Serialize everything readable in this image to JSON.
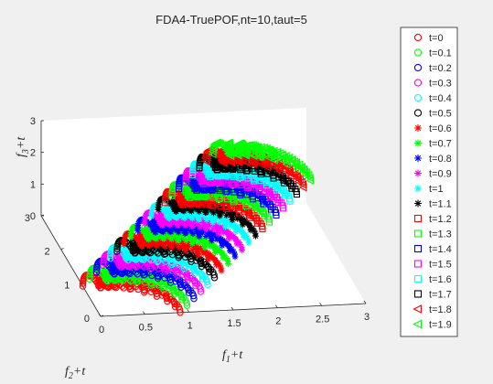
{
  "chart_data": {
    "type": "scatter",
    "subtype": "3d",
    "title": "FDA4-TruePOF,nt=10,taut=5",
    "xlabel": {
      "main": "f",
      "sub": "1",
      "suffix": "+t"
    },
    "ylabel": {
      "main": "f",
      "sub": "2",
      "suffix": "+t"
    },
    "zlabel": {
      "main": "f",
      "sub": "3",
      "suffix": "+t"
    },
    "xlim": [
      0,
      3
    ],
    "ylim": [
      0,
      3
    ],
    "zlim": [
      0,
      3
    ],
    "x_ticks": [
      "0",
      "0.5",
      "1",
      "1.5",
      "2",
      "2.5",
      "3"
    ],
    "y_ticks": [
      "0",
      "1",
      "2",
      "3"
    ],
    "z_ticks": [
      "0",
      "1",
      "2",
      "3"
    ],
    "legend_position": "right",
    "series": [
      {
        "name": "t=0",
        "t": 0.0,
        "color": "#ff0000",
        "marker": "circle"
      },
      {
        "name": "t=0.1",
        "t": 0.1,
        "color": "#00ff00",
        "marker": "circle"
      },
      {
        "name": "t=0.2",
        "t": 0.2,
        "color": "#0000ff",
        "marker": "circle"
      },
      {
        "name": "t=0.3",
        "t": 0.3,
        "color": "#ff00ff",
        "marker": "circle"
      },
      {
        "name": "t=0.4",
        "t": 0.4,
        "color": "#00ffff",
        "marker": "circle"
      },
      {
        "name": "t=0.5",
        "t": 0.5,
        "color": "#000000",
        "marker": "circle"
      },
      {
        "name": "t=0.6",
        "t": 0.6,
        "color": "#ff0000",
        "marker": "asterisk"
      },
      {
        "name": "t=0.7",
        "t": 0.7,
        "color": "#00ff00",
        "marker": "asterisk"
      },
      {
        "name": "t=0.8",
        "t": 0.8,
        "color": "#0000ff",
        "marker": "asterisk"
      },
      {
        "name": "t=0.9",
        "t": 0.9,
        "color": "#ff00ff",
        "marker": "asterisk"
      },
      {
        "name": "t=1",
        "t": 1.0,
        "color": "#00ffff",
        "marker": "asterisk"
      },
      {
        "name": "t=1.1",
        "t": 1.1,
        "color": "#000000",
        "marker": "asterisk"
      },
      {
        "name": "t=1.2",
        "t": 1.2,
        "color": "#ff0000",
        "marker": "square"
      },
      {
        "name": "t=1.3",
        "t": 1.3,
        "color": "#00ff00",
        "marker": "square"
      },
      {
        "name": "t=1.4",
        "t": 1.4,
        "color": "#0000ff",
        "marker": "square"
      },
      {
        "name": "t=1.5",
        "t": 1.5,
        "color": "#ff00ff",
        "marker": "square"
      },
      {
        "name": "t=1.6",
        "t": 1.6,
        "color": "#00ffff",
        "marker": "square"
      },
      {
        "name": "t=1.7",
        "t": 1.7,
        "color": "#000000",
        "marker": "square"
      },
      {
        "name": "t=1.8",
        "t": 1.8,
        "color": "#ff0000",
        "marker": "triangle-left"
      },
      {
        "name": "t=1.9",
        "t": 1.9,
        "color": "#00ff00",
        "marker": "triangle-left"
      }
    ]
  }
}
